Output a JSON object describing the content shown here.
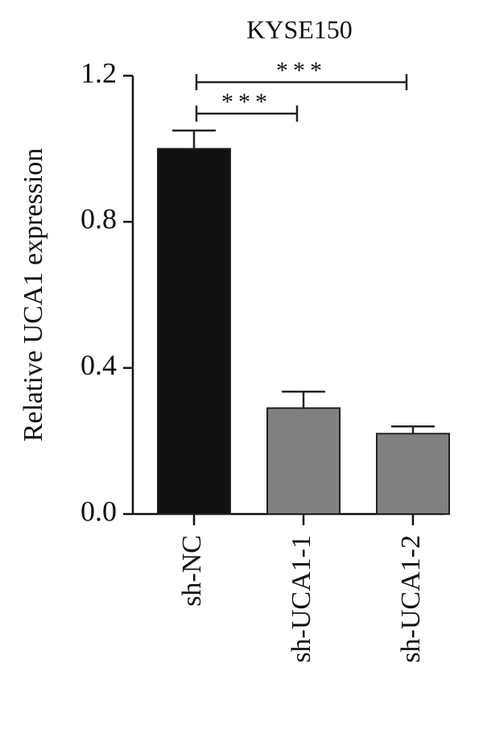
{
  "chart_data": {
    "type": "bar",
    "title": "KYSE150",
    "y_label": "Relative UCA1 expression",
    "categories": [
      "sh-NC",
      "sh-UCA1-1",
      "sh-UCA1-2"
    ],
    "values": [
      1.0,
      0.29,
      0.22
    ],
    "errors": [
      0.05,
      0.045,
      0.02
    ],
    "colors": [
      "#111111",
      "#808080",
      "#808080"
    ],
    "ylim": [
      0,
      1.2
    ],
    "yticks": [
      {
        "value": 0,
        "label": "0.0"
      },
      0.4,
      0.8,
      1.2
    ],
    "annotations": [
      "***",
      "***"
    ]
  }
}
